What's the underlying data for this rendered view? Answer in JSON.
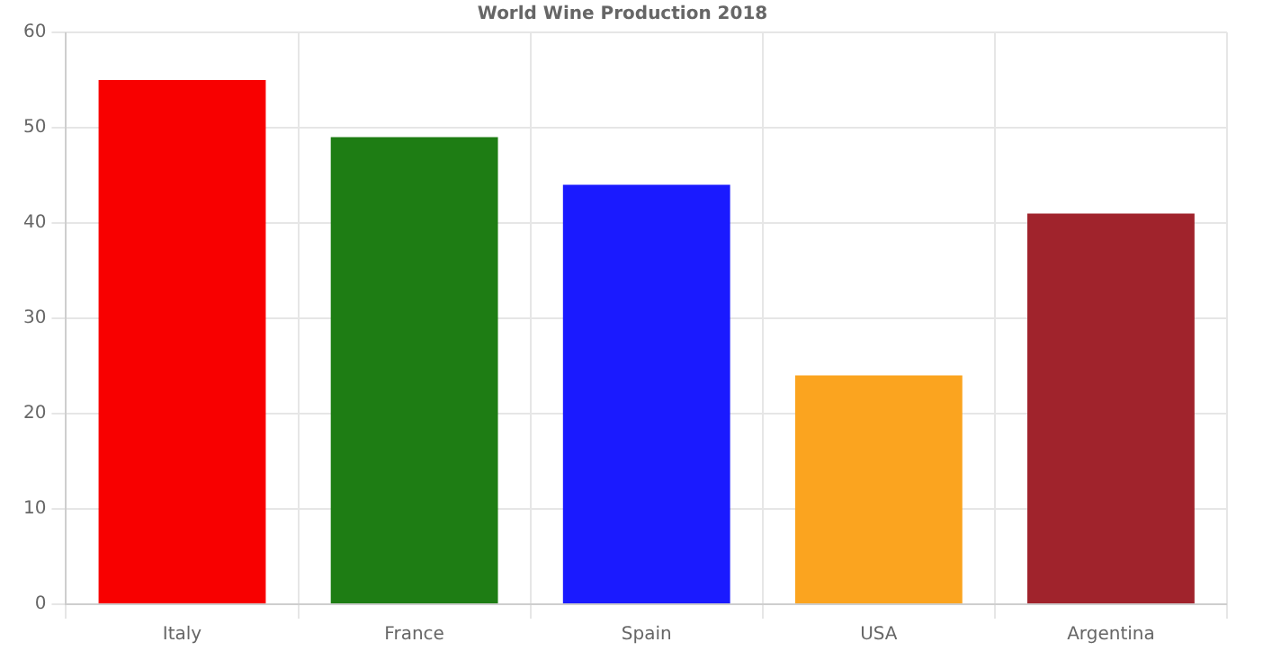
{
  "chart_data": {
    "type": "bar",
    "title": "World Wine Production 2018",
    "categories": [
      "Italy",
      "France",
      "Spain",
      "USA",
      "Argentina"
    ],
    "values": [
      55,
      49,
      44,
      24,
      41
    ],
    "colors": [
      "#f80000",
      "#1e7d14",
      "#1a1aff",
      "#fba41f",
      "#a0232c"
    ],
    "ylim": [
      0,
      60
    ],
    "yticks": [
      0,
      10,
      20,
      30,
      40,
      50,
      60
    ],
    "grid": true
  }
}
